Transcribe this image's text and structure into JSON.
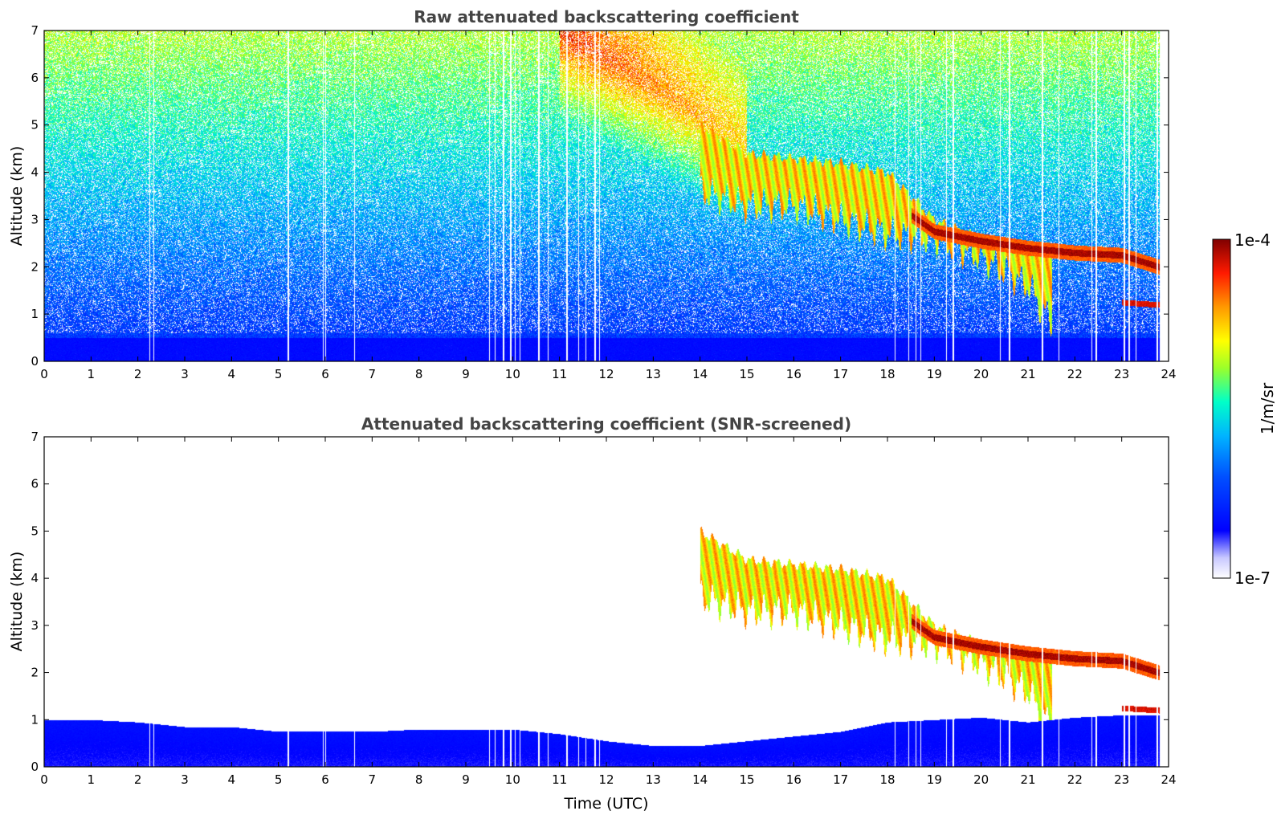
{
  "colors": {
    "colormap": [
      "#ffffff",
      "#0000ff",
      "#00aaff",
      "#00ffcc",
      "#aaff00",
      "#ffff00",
      "#ff8800",
      "#ff0000",
      "#800000"
    ],
    "axis": "#000000",
    "title": "#444444"
  },
  "chart_data": [
    {
      "type": "heatmap",
      "title": "Raw attenuated backscattering coefficient",
      "xlabel": "",
      "ylabel": "Altitude (km)",
      "xlim": [
        0,
        24
      ],
      "ylim": [
        0,
        7
      ],
      "x_ticks": [
        "0",
        "1",
        "2",
        "3",
        "4",
        "5",
        "6",
        "7",
        "8",
        "9",
        "10",
        "11",
        "12",
        "13",
        "14",
        "15",
        "16",
        "17",
        "18",
        "19",
        "20",
        "21",
        "22",
        "23",
        "24"
      ],
      "y_ticks": [
        "0",
        "1",
        "2",
        "3",
        "4",
        "5",
        "6",
        "7"
      ],
      "grid": false,
      "data_gaps_utc": [
        2.25,
        2.33,
        5.2,
        5.95,
        6.0,
        6.62,
        9.5,
        9.62,
        9.8,
        9.95,
        10.05,
        10.15,
        10.55,
        10.75,
        11.15,
        11.4,
        11.55,
        11.75,
        11.85,
        18.15,
        18.45,
        18.6,
        18.7,
        19.25,
        19.4,
        20.4,
        20.6,
        21.3,
        21.65,
        22.35,
        22.45,
        23.05,
        23.15,
        23.3,
        23.75
      ],
      "layers": [
        {
          "feature": "near-surface boundary layer",
          "x": [
            0,
            23.8
          ],
          "base_km": 0.0,
          "top_km": 0.5,
          "log10_beta": -6.3
        },
        {
          "feature": "elevated aerosol / virga",
          "x": [
            12,
            13,
            14,
            15,
            16,
            17,
            18
          ],
          "top_km": [
            7.0,
            6.2,
            5.0,
            4.4,
            4.3,
            4.2,
            4.0
          ],
          "base_km": [
            5.5,
            4.5,
            3.6,
            3.3,
            3.3,
            3.0,
            2.7
          ],
          "log10_beta": -4.5
        },
        {
          "feature": "cloud layer",
          "x": [
            18.5,
            19.0,
            20.0,
            21.0,
            22.0,
            23.0,
            23.8
          ],
          "altitude_km": [
            3.1,
            2.75,
            2.55,
            2.4,
            2.3,
            2.25,
            2.0
          ],
          "log10_beta": -4.0
        },
        {
          "feature": "low cloud",
          "x": [
            23.0,
            23.8
          ],
          "altitude_km": [
            1.25,
            1.2
          ],
          "log10_beta": -4.1
        }
      ]
    },
    {
      "type": "heatmap",
      "title": "Attenuated backscattering coefficient (SNR-screened)",
      "xlabel": "Time (UTC)",
      "ylabel": "Altitude (km)",
      "xlim": [
        0,
        24
      ],
      "ylim": [
        0,
        7
      ],
      "x_ticks": [
        "0",
        "1",
        "2",
        "3",
        "4",
        "5",
        "6",
        "7",
        "8",
        "9",
        "10",
        "11",
        "12",
        "13",
        "14",
        "15",
        "16",
        "17",
        "18",
        "19",
        "20",
        "21",
        "22",
        "23",
        "24"
      ],
      "y_ticks": [
        "0",
        "1",
        "2",
        "3",
        "4",
        "5",
        "6",
        "7"
      ],
      "grid": false,
      "boundary_layer_top_km": {
        "x": [
          0,
          1,
          2,
          3,
          4,
          5,
          6,
          7,
          8,
          9,
          10,
          11,
          12,
          13,
          14,
          15,
          16,
          17,
          18,
          19,
          20,
          21,
          22,
          23,
          23.8
        ],
        "y": [
          1.0,
          1.0,
          0.95,
          0.85,
          0.85,
          0.75,
          0.75,
          0.75,
          0.8,
          0.8,
          0.8,
          0.7,
          0.55,
          0.45,
          0.45,
          0.55,
          0.65,
          0.75,
          0.95,
          1.0,
          1.05,
          0.95,
          1.05,
          1.1,
          1.1
        ]
      }
    }
  ],
  "colorbar": {
    "label": "1/m/sr",
    "max_label": "1e-4",
    "min_label": "1e-7",
    "log10_range": [
      -7,
      -4
    ]
  }
}
